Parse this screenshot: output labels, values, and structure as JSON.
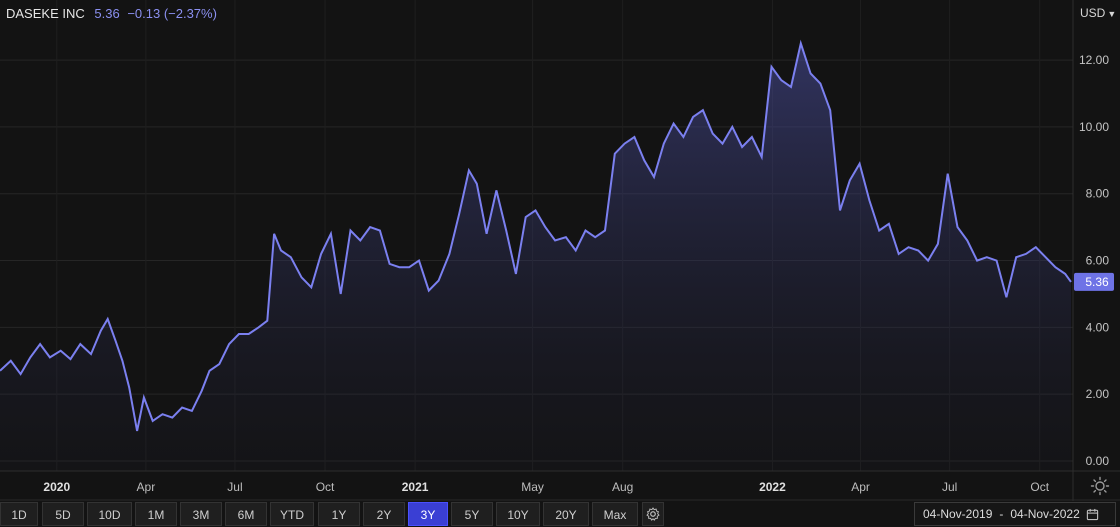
{
  "header": {
    "name": "DASEKE INC",
    "price": "5.36",
    "change": "−0.13 (−2.37%)"
  },
  "currency": {
    "label": "USD"
  },
  "chart_data": {
    "type": "area",
    "y_ticks": [
      "12.00",
      "10.00",
      "8.00",
      "6.00",
      "4.00",
      "2.00",
      "0.00"
    ],
    "y_tick_values": [
      12,
      10,
      8,
      6,
      4,
      2,
      0
    ],
    "ylim": [
      -0.3,
      13.8
    ],
    "x_ticks": [
      {
        "label": "2020",
        "date": "2020-01-01",
        "bold": true
      },
      {
        "label": "Apr",
        "date": "2020-04-01",
        "bold": false
      },
      {
        "label": "Jul",
        "date": "2020-07-01",
        "bold": false
      },
      {
        "label": "Oct",
        "date": "2020-10-01",
        "bold": false
      },
      {
        "label": "2021",
        "date": "2021-01-01",
        "bold": true
      },
      {
        "label": "May",
        "date": "2021-05-01",
        "bold": false
      },
      {
        "label": "Aug",
        "date": "2021-08-01",
        "bold": false
      },
      {
        "label": "2022",
        "date": "2022-01-01",
        "bold": true
      },
      {
        "label": "Apr",
        "date": "2022-04-01",
        "bold": false
      },
      {
        "label": "Jul",
        "date": "2022-07-01",
        "bold": false
      },
      {
        "label": "Oct",
        "date": "2022-10-01",
        "bold": false
      }
    ],
    "xlim": [
      "2019-11-04",
      "2022-11-04"
    ],
    "last_value": "5.36",
    "series": [
      {
        "color": "#7b80f0",
        "points": [
          [
            "2019-11-04",
            2.7
          ],
          [
            "2019-11-15",
            3.0
          ],
          [
            "2019-11-25",
            2.6
          ],
          [
            "2019-12-05",
            3.1
          ],
          [
            "2019-12-15",
            3.5
          ],
          [
            "2019-12-25",
            3.1
          ],
          [
            "2020-01-05",
            3.3
          ],
          [
            "2020-01-15",
            3.05
          ],
          [
            "2020-01-25",
            3.5
          ],
          [
            "2020-02-05",
            3.2
          ],
          [
            "2020-02-15",
            3.9
          ],
          [
            "2020-02-22",
            4.25
          ],
          [
            "2020-03-01",
            3.6
          ],
          [
            "2020-03-08",
            3.0
          ],
          [
            "2020-03-15",
            2.2
          ],
          [
            "2020-03-23",
            0.9
          ],
          [
            "2020-03-30",
            1.9
          ],
          [
            "2020-04-08",
            1.2
          ],
          [
            "2020-04-18",
            1.4
          ],
          [
            "2020-04-28",
            1.3
          ],
          [
            "2020-05-08",
            1.6
          ],
          [
            "2020-05-18",
            1.5
          ],
          [
            "2020-05-28",
            2.1
          ],
          [
            "2020-06-05",
            2.7
          ],
          [
            "2020-06-15",
            2.9
          ],
          [
            "2020-06-25",
            3.5
          ],
          [
            "2020-07-05",
            3.8
          ],
          [
            "2020-07-15",
            3.8
          ],
          [
            "2020-07-25",
            4.0
          ],
          [
            "2020-08-03",
            4.2
          ],
          [
            "2020-08-10",
            6.8
          ],
          [
            "2020-08-17",
            6.3
          ],
          [
            "2020-08-27",
            6.1
          ],
          [
            "2020-09-07",
            5.5
          ],
          [
            "2020-09-17",
            5.2
          ],
          [
            "2020-09-27",
            6.2
          ],
          [
            "2020-10-07",
            6.8
          ],
          [
            "2020-10-17",
            5.0
          ],
          [
            "2020-10-27",
            6.9
          ],
          [
            "2020-11-06",
            6.6
          ],
          [
            "2020-11-16",
            7.0
          ],
          [
            "2020-11-26",
            6.9
          ],
          [
            "2020-12-06",
            5.9
          ],
          [
            "2020-12-16",
            5.8
          ],
          [
            "2020-12-26",
            5.8
          ],
          [
            "2021-01-05",
            6.0
          ],
          [
            "2021-01-15",
            5.1
          ],
          [
            "2021-01-25",
            5.4
          ],
          [
            "2021-02-05",
            6.2
          ],
          [
            "2021-02-15",
            7.4
          ],
          [
            "2021-02-25",
            8.7
          ],
          [
            "2021-03-05",
            8.3
          ],
          [
            "2021-03-15",
            6.8
          ],
          [
            "2021-03-25",
            8.1
          ],
          [
            "2021-04-04",
            6.9
          ],
          [
            "2021-04-14",
            5.6
          ],
          [
            "2021-04-24",
            7.3
          ],
          [
            "2021-05-04",
            7.5
          ],
          [
            "2021-05-14",
            7.0
          ],
          [
            "2021-05-24",
            6.6
          ],
          [
            "2021-06-04",
            6.7
          ],
          [
            "2021-06-14",
            6.3
          ],
          [
            "2021-06-24",
            6.9
          ],
          [
            "2021-07-04",
            6.7
          ],
          [
            "2021-07-14",
            6.9
          ],
          [
            "2021-07-24",
            9.2
          ],
          [
            "2021-08-03",
            9.5
          ],
          [
            "2021-08-13",
            9.7
          ],
          [
            "2021-08-23",
            9.0
          ],
          [
            "2021-09-02",
            8.5
          ],
          [
            "2021-09-12",
            9.5
          ],
          [
            "2021-09-22",
            10.1
          ],
          [
            "2021-10-02",
            9.7
          ],
          [
            "2021-10-12",
            10.3
          ],
          [
            "2021-10-22",
            10.5
          ],
          [
            "2021-11-01",
            9.8
          ],
          [
            "2021-11-11",
            9.5
          ],
          [
            "2021-11-21",
            10.0
          ],
          [
            "2021-12-01",
            9.4
          ],
          [
            "2021-12-11",
            9.7
          ],
          [
            "2021-12-21",
            9.1
          ],
          [
            "2021-12-31",
            11.8
          ],
          [
            "2022-01-10",
            11.4
          ],
          [
            "2022-01-20",
            11.2
          ],
          [
            "2022-01-30",
            12.5
          ],
          [
            "2022-02-09",
            11.6
          ],
          [
            "2022-02-19",
            11.3
          ],
          [
            "2022-03-01",
            10.5
          ],
          [
            "2022-03-11",
            7.5
          ],
          [
            "2022-03-21",
            8.4
          ],
          [
            "2022-03-31",
            8.9
          ],
          [
            "2022-04-10",
            7.8
          ],
          [
            "2022-04-20",
            6.9
          ],
          [
            "2022-04-30",
            7.1
          ],
          [
            "2022-05-10",
            6.2
          ],
          [
            "2022-05-20",
            6.4
          ],
          [
            "2022-05-30",
            6.3
          ],
          [
            "2022-06-09",
            6.0
          ],
          [
            "2022-06-19",
            6.5
          ],
          [
            "2022-06-29",
            8.6
          ],
          [
            "2022-07-09",
            7.0
          ],
          [
            "2022-07-19",
            6.6
          ],
          [
            "2022-07-29",
            6.0
          ],
          [
            "2022-08-08",
            6.1
          ],
          [
            "2022-08-18",
            6.0
          ],
          [
            "2022-08-28",
            4.9
          ],
          [
            "2022-09-07",
            6.1
          ],
          [
            "2022-09-17",
            6.2
          ],
          [
            "2022-09-27",
            6.4
          ],
          [
            "2022-10-07",
            6.1
          ],
          [
            "2022-10-17",
            5.8
          ],
          [
            "2022-10-27",
            5.6
          ],
          [
            "2022-11-02",
            5.36
          ]
        ]
      }
    ]
  },
  "bottom_bar": {
    "ranges": [
      "1D",
      "5D",
      "10D",
      "1M",
      "3M",
      "6M",
      "YTD",
      "1Y",
      "2Y",
      "3Y",
      "5Y",
      "10Y",
      "20Y",
      "Max"
    ],
    "active_range": "3Y",
    "date_from": "04-Nov-2019",
    "date_sep": "-",
    "date_to": "04-Nov-2022"
  },
  "icons": {
    "settings": "gear-icon",
    "calendar": "calendar-icon",
    "theme": "sun-icon"
  },
  "colors": {
    "background": "#131313",
    "line": "#7b80f0",
    "accent": "#3a3fd4",
    "grid": "#262626"
  }
}
